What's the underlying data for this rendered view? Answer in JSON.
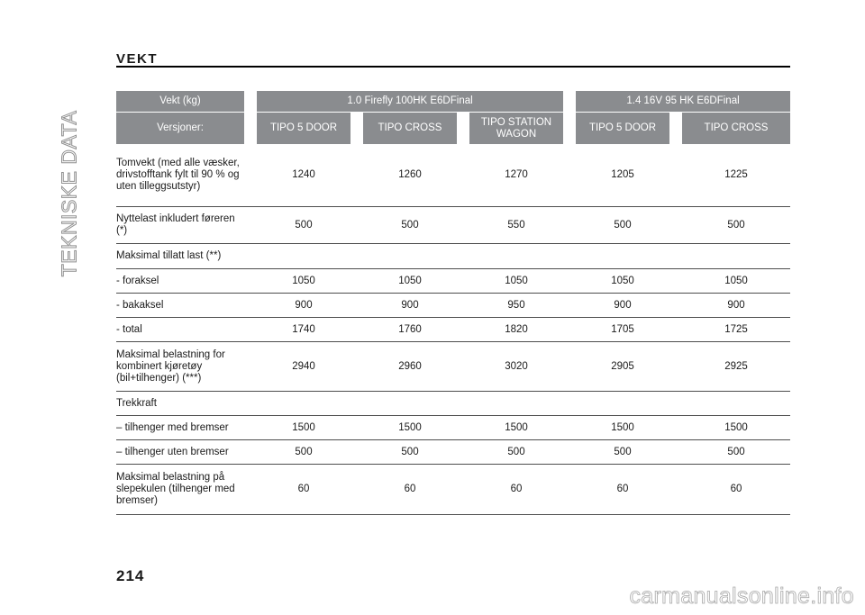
{
  "sidebar": {
    "chapter_title": "TEKNISKE DATA"
  },
  "page_number": "214",
  "section_title": "VEKT",
  "table": {
    "header_label": "Vekt (kg)",
    "engine_1": "1.0 Firefly 100HK E6DFinal",
    "engine_2": "1.4 16V 95 HK E6DFinal",
    "versions_label": "Versjoner:",
    "versions": [
      "TIPO 5 DOOR",
      "TIPO CROSS",
      "TIPO STATION WAGON",
      "TIPO 5 DOOR",
      "TIPO CROSS"
    ],
    "rows": [
      {
        "label": "Tomvekt (med alle væsker, drivstofftank fylt til 90 % og uten tilleggsutstyr)",
        "values": [
          "1240",
          "1260",
          "1270",
          "1205",
          "1225"
        ]
      },
      {
        "label": "Nyttelast inkludert føreren (*)",
        "values": [
          "500",
          "500",
          "550",
          "500",
          "500"
        ]
      },
      {
        "label": "Maksimal tillatt last (**)",
        "values": [
          "",
          "",
          "",
          "",
          ""
        ]
      },
      {
        "label": "- foraksel",
        "values": [
          "1050",
          "1050",
          "1050",
          "1050",
          "1050"
        ]
      },
      {
        "label": "- bakaksel",
        "values": [
          "900",
          "900",
          "950",
          "900",
          "900"
        ]
      },
      {
        "label": "- total",
        "values": [
          "1740",
          "1760",
          "1820",
          "1705",
          "1725"
        ]
      },
      {
        "label": "Maksimal belastning for kombinert kjøretøy (bil+tilhenger) (***)",
        "values": [
          "2940",
          "2960",
          "3020",
          "2905",
          "2925"
        ]
      },
      {
        "label": "Trekkraft",
        "values": [
          "",
          "",
          "",
          "",
          ""
        ]
      },
      {
        "label": "– tilhenger med bremser",
        "values": [
          "1500",
          "1500",
          "1500",
          "1500",
          "1500"
        ]
      },
      {
        "label": "– tilhenger uten bremser",
        "values": [
          "500",
          "500",
          "500",
          "500",
          "500"
        ]
      },
      {
        "label": "Maksimal belastning på slepekulen (tilhenger med bremser)",
        "values": [
          "60",
          "60",
          "60",
          "60",
          "60"
        ]
      }
    ]
  },
  "watermark": "carmanualsonline.info"
}
